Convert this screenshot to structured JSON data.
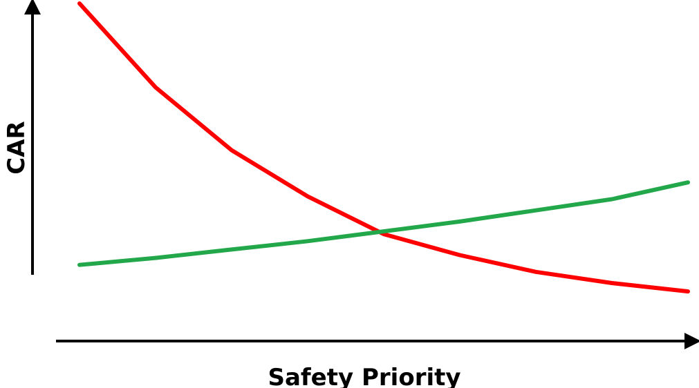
{
  "chart_data": {
    "type": "line",
    "title": "",
    "xlabel": "Safety Priority",
    "ylabel": "CAR",
    "xlim": [
      0,
      8
    ],
    "ylim": [
      0,
      10
    ],
    "grid": false,
    "legend": "none",
    "x": [
      0,
      1,
      2,
      3,
      4,
      5,
      6,
      7,
      8
    ],
    "series": [
      {
        "color": "#ff0000",
        "values": [
          10.0,
          7.0,
          4.75,
          3.1,
          1.75,
          1.0,
          0.4,
          0.0,
          -0.3
        ]
      },
      {
        "color": "#22a84a",
        "values": [
          0.65,
          0.9,
          1.2,
          1.5,
          1.85,
          2.2,
          2.6,
          3.0,
          3.6
        ]
      }
    ]
  }
}
